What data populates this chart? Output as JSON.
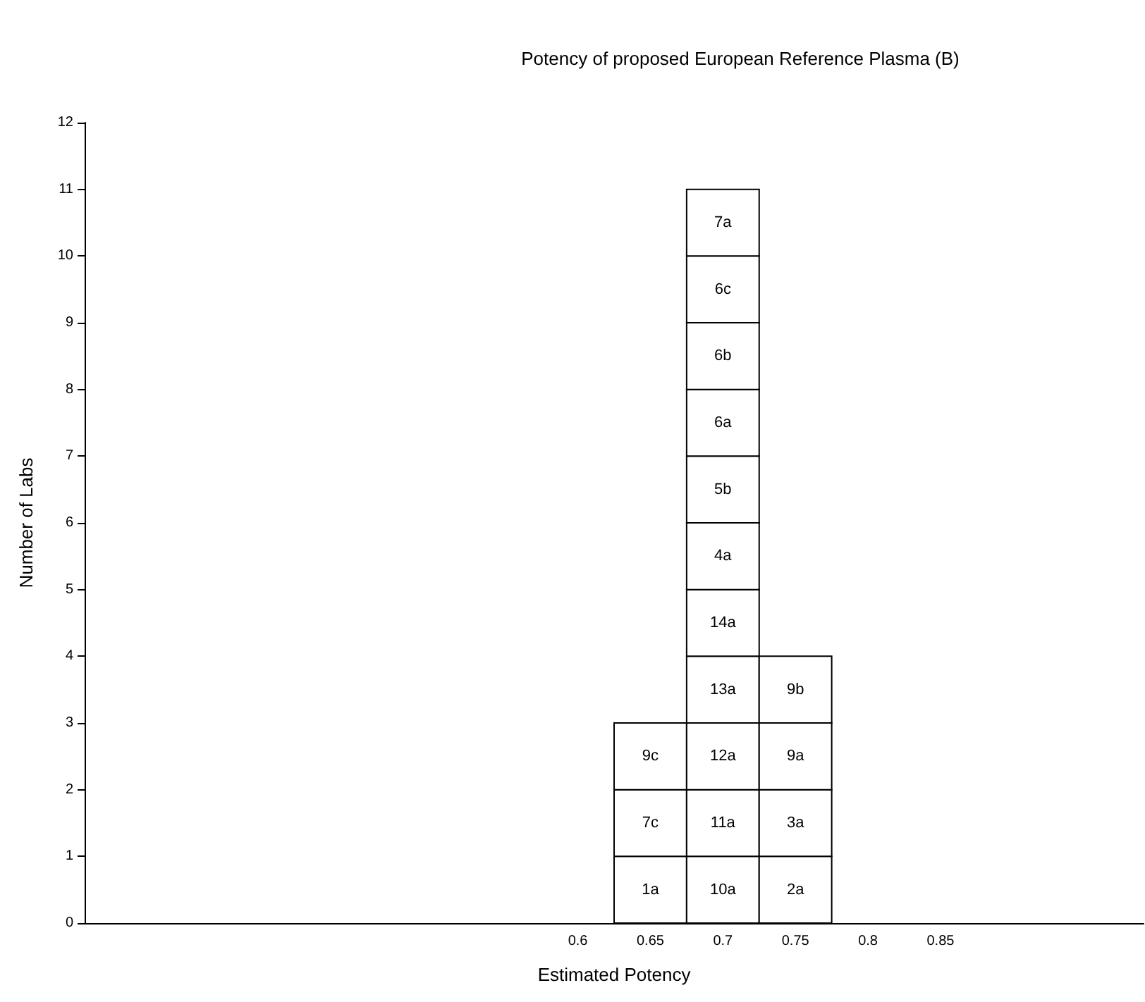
{
  "chart_data": {
    "type": "bar",
    "title": "Potency of proposed European Reference Plasma (B)",
    "xlabel": "Estimated Potency",
    "ylabel": "Number of Labs",
    "x": [
      0.65,
      0.7,
      0.75
    ],
    "stacked": true,
    "series": [
      {
        "color": "#ffffff",
        "values": [
          1,
          1,
          1
        ]
      },
      {
        "color": "#ffffff",
        "values": [
          1,
          1,
          1
        ]
      },
      {
        "color": "#ffffff",
        "values": [
          1,
          1,
          1
        ]
      },
      {
        "color": "#ffffff",
        "values": [
          null,
          1,
          1
        ]
      },
      {
        "color": "#ffffff",
        "values": [
          null,
          1,
          null
        ]
      },
      {
        "color": "#ffffff",
        "values": [
          null,
          1,
          null
        ]
      },
      {
        "color": "#ffffff",
        "values": [
          null,
          1,
          null
        ]
      },
      {
        "color": "#ffffff",
        "values": [
          null,
          1,
          null
        ]
      },
      {
        "color": "#ffffff",
        "values": [
          null,
          1,
          null
        ]
      },
      {
        "color": "#ffffff",
        "values": [
          null,
          1,
          null
        ]
      },
      {
        "color": "#ffffff",
        "values": [
          null,
          1,
          null
        ]
      }
    ],
    "xlim": [
      0.26,
      0.99
    ],
    "xticks": [
      0.6,
      0.65,
      0.7,
      0.75,
      0.8,
      0.85
    ],
    "ylim": [
      0,
      12
    ],
    "yticks": [
      0,
      1,
      2,
      3,
      4,
      5,
      6,
      7,
      8,
      9,
      10,
      11,
      12
    ],
    "grid": false,
    "annotations": [
      "1a",
      "7c",
      "9c",
      "10a",
      "11a",
      "12a",
      "13a",
      "14a",
      "4a",
      "5b",
      "6a",
      "6b",
      "6c",
      "7a",
      "2a",
      "3a",
      "9a",
      "9b"
    ]
  }
}
